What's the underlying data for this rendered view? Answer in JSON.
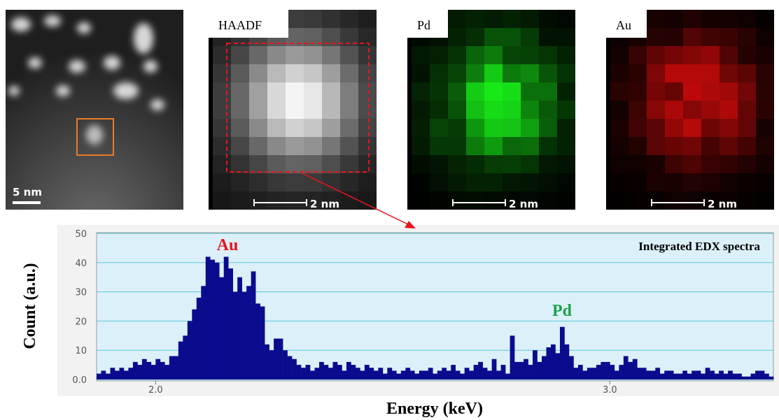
{
  "micrographs": {
    "overview_scale": "5 nm",
    "maps": [
      {
        "label": "HAADF",
        "scale": "2 nm"
      },
      {
        "label": "Pd",
        "scale": "2 nm"
      },
      {
        "label": "Au",
        "scale": "2 nm"
      }
    ]
  },
  "chart_data": {
    "type": "histogram",
    "title": "Integrated EDX spectra",
    "x_label": "Energy (keV)",
    "y_label": "Count (a.u.)",
    "color": "#0b0b8e",
    "bins": [
      1.87,
      1.88,
      1.89,
      1.9,
      1.91,
      1.92,
      1.93,
      1.94,
      1.95,
      1.96,
      1.97,
      1.98,
      1.99,
      2.0,
      2.01,
      2.02,
      2.03,
      2.04,
      2.05,
      2.06,
      2.07,
      2.08,
      2.09,
      2.1,
      2.11,
      2.12,
      2.13,
      2.14,
      2.15,
      2.16,
      2.17,
      2.18,
      2.19,
      2.2,
      2.21,
      2.22,
      2.23,
      2.24,
      2.25,
      2.26,
      2.27,
      2.28,
      2.29,
      2.3,
      2.31,
      2.32,
      2.33,
      2.34,
      2.35,
      2.36,
      2.37,
      2.38,
      2.39,
      2.4,
      2.41,
      2.42,
      2.43,
      2.44,
      2.45,
      2.46,
      2.47,
      2.48,
      2.49,
      2.5,
      2.51,
      2.52,
      2.53,
      2.54,
      2.55,
      2.56,
      2.57,
      2.58,
      2.59,
      2.6,
      2.61,
      2.62,
      2.63,
      2.64,
      2.65,
      2.66,
      2.67,
      2.68,
      2.69,
      2.7,
      2.71,
      2.72,
      2.73,
      2.74,
      2.75,
      2.76,
      2.77,
      2.78,
      2.79,
      2.8,
      2.81,
      2.82,
      2.83,
      2.84,
      2.85,
      2.86,
      2.87,
      2.88,
      2.89,
      2.9,
      2.91,
      2.92,
      2.93,
      2.94,
      2.95,
      2.96,
      2.97,
      2.98,
      2.99,
      3.0,
      3.01,
      3.02,
      3.03,
      3.04,
      3.05,
      3.06,
      3.07,
      3.08,
      3.09,
      3.1,
      3.11,
      3.12,
      3.13,
      3.14,
      3.15,
      3.16,
      3.17,
      3.18,
      3.19,
      3.2,
      3.21,
      3.22,
      3.23,
      3.24,
      3.25,
      3.26,
      3.27,
      3.28,
      3.29,
      3.3,
      3.31,
      3.32,
      3.33,
      3.34,
      3.35,
      3.36
    ],
    "counts": [
      2,
      3,
      2,
      4,
      3,
      4,
      3,
      4,
      6,
      5,
      7,
      6,
      5,
      7,
      6,
      5,
      8,
      8,
      13,
      15,
      20,
      24,
      28,
      32,
      42,
      41,
      40,
      35,
      42,
      38,
      30,
      35,
      30,
      32,
      37,
      26,
      25,
      12,
      10,
      14,
      14,
      10,
      8,
      7,
      5,
      4,
      5,
      3,
      4,
      6,
      5,
      4,
      6,
      5,
      3,
      6,
      5,
      4,
      3,
      5,
      4,
      3,
      4,
      2,
      4,
      3,
      2,
      3,
      4,
      3,
      2,
      3,
      3,
      4,
      2,
      3,
      4,
      3,
      5,
      3,
      2,
      4,
      3,
      5,
      6,
      4,
      3,
      7,
      3,
      5,
      2,
      15,
      6,
      6,
      7,
      5,
      10,
      6,
      8,
      11,
      12,
      9,
      18,
      12,
      8,
      4,
      5,
      3,
      4,
      4,
      5,
      6,
      6,
      5,
      3,
      5,
      8,
      6,
      7,
      4,
      4,
      3,
      3,
      4,
      2,
      3,
      3,
      2,
      2,
      3,
      2,
      3,
      3,
      2,
      4,
      3,
      2,
      3,
      2,
      3,
      2,
      2,
      1,
      1,
      2,
      3,
      3,
      2,
      1,
      1
    ],
    "xlim": [
      1.87,
      3.36
    ],
    "ylim": [
      0,
      50
    ],
    "xticks": [
      {
        "value": 2,
        "label": "2.0"
      },
      {
        "value": 3,
        "label": "3.0"
      }
    ],
    "yticks": [
      {
        "value": 0,
        "label": "0.0"
      },
      10,
      20,
      30,
      40,
      50
    ],
    "grid": true,
    "annotations": [
      {
        "text": "Au",
        "color": "#e8141c"
      },
      {
        "text": "Pd",
        "color": "#1aa34a"
      }
    ]
  }
}
